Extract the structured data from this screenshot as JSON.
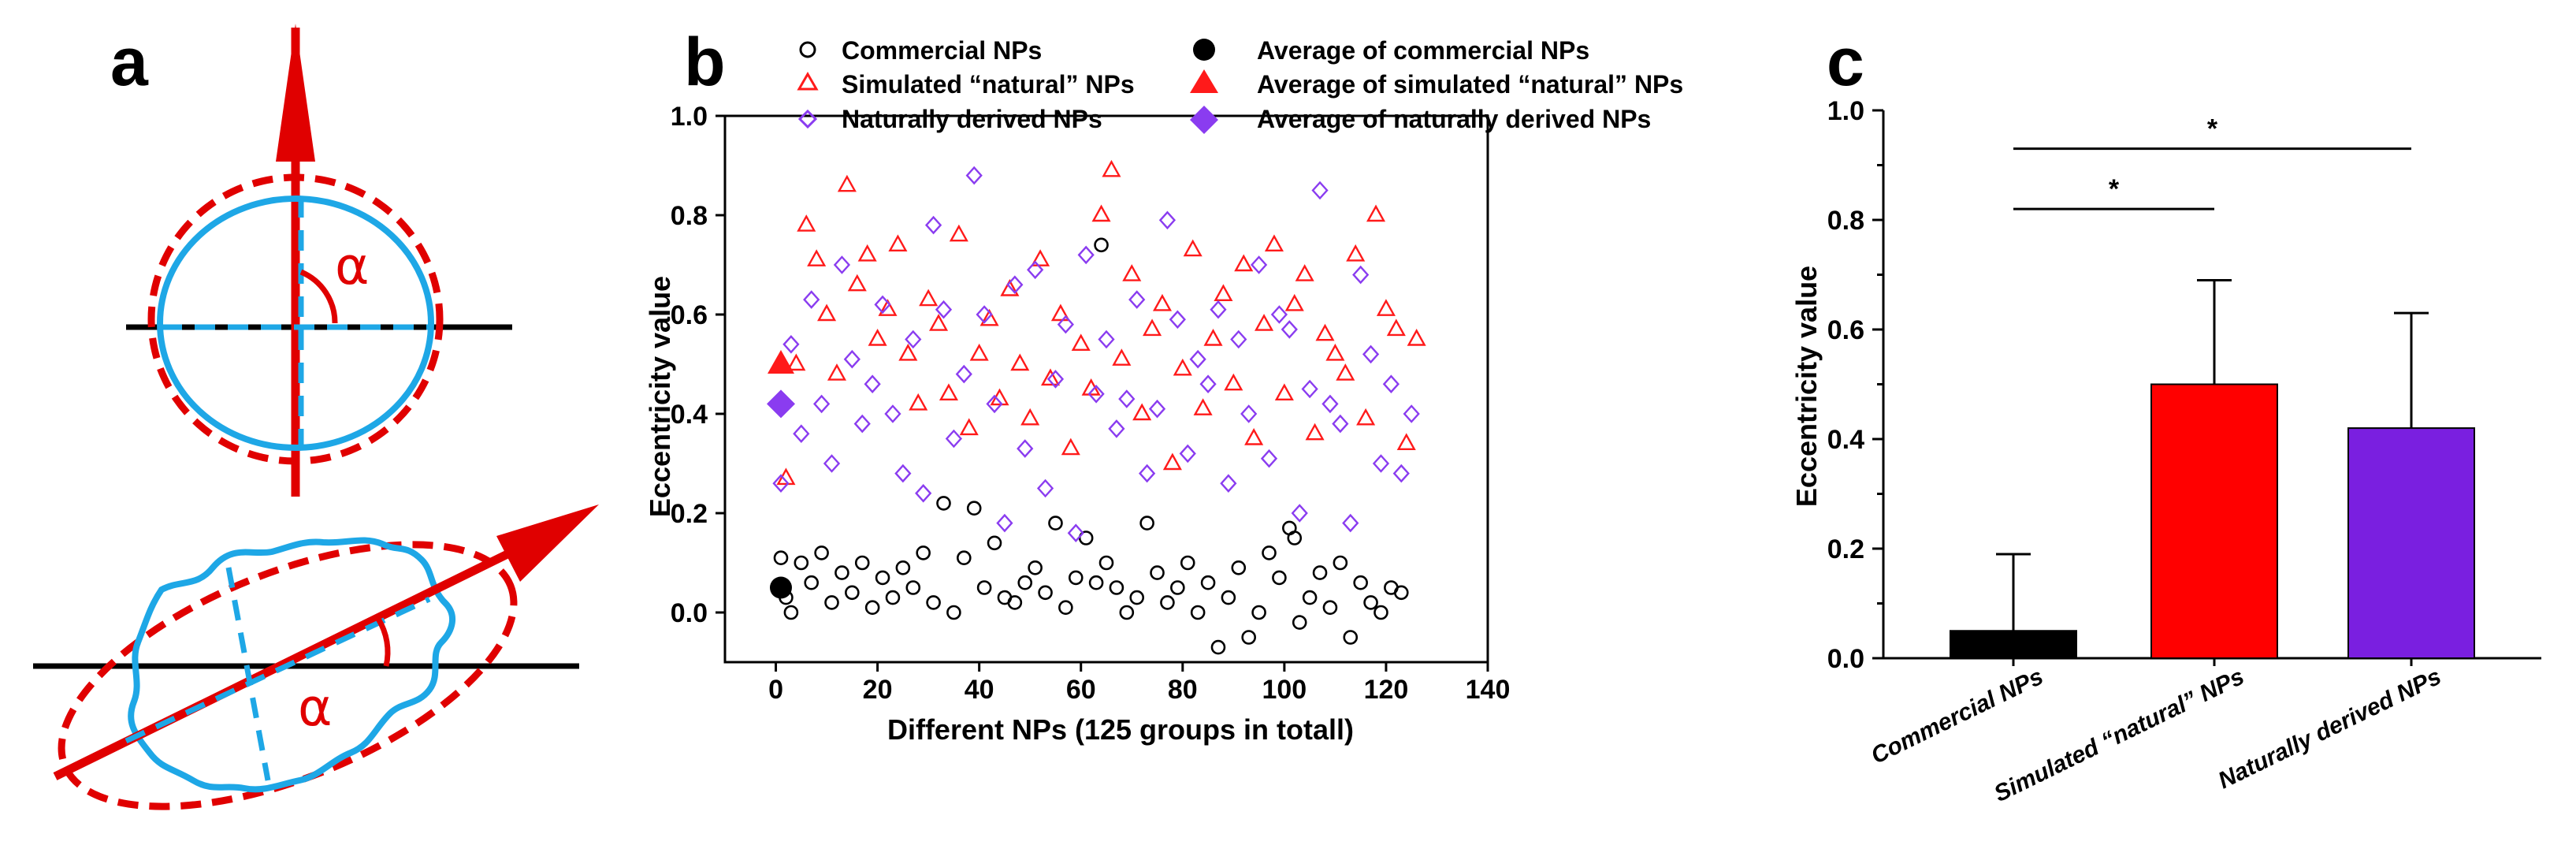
{
  "panels": {
    "a": "a",
    "b": "b",
    "c": "c"
  },
  "diagram_a": {
    "angle_symbol": "α"
  },
  "colors": {
    "commercial": "#000000",
    "simulated": "#ff1a1a",
    "natural": "#8a3cf0",
    "bar_commercial": "#000000",
    "bar_simulated": "#ff0000",
    "bar_natural": "#7a1fe0",
    "diagram_red": "#e00000",
    "diagram_blue": "#1ea7e6"
  },
  "chart_data": [
    {
      "type": "scatter",
      "title": "",
      "xlabel": "Different NPs (125 groups in totall)",
      "ylabel": "Eccentricity value",
      "xlim": [
        -10,
        140
      ],
      "ylim": [
        -0.1,
        1.0
      ],
      "xticks": [
        "0",
        "20",
        "40",
        "60",
        "80",
        "100",
        "120",
        "140"
      ],
      "yticks": [
        "0.0",
        "0.2",
        "0.4",
        "0.6",
        "0.8",
        "1.0"
      ],
      "legend": [
        "Commercial NPs",
        "Simulated “natural” NPs",
        "Naturally derived NPs",
        "Average of commercial NPs",
        "Average of simulated “natural” NPs",
        "Average of naturally derived NPs"
      ],
      "averages": [
        {
          "name": "Average of commercial NPs",
          "x": 1,
          "y": 0.05
        },
        {
          "name": "Average of simulated “natural” NPs",
          "x": 1,
          "y": 0.5
        },
        {
          "name": "Average of naturally derived NPs",
          "x": 1,
          "y": 0.42
        }
      ],
      "series": [
        {
          "name": "Commercial NPs",
          "marker": "circle",
          "x": [
            1,
            2,
            3,
            5,
            7,
            9,
            11,
            13,
            15,
            17,
            19,
            21,
            23,
            25,
            27,
            29,
            31,
            33,
            35,
            37,
            39,
            41,
            43,
            45,
            47,
            49,
            51,
            53,
            55,
            57,
            59,
            61,
            63,
            64,
            65,
            67,
            69,
            71,
            73,
            75,
            77,
            79,
            81,
            83,
            85,
            87,
            89,
            91,
            93,
            95,
            97,
            99,
            101,
            102,
            103,
            105,
            107,
            109,
            111,
            113,
            115,
            117,
            119,
            121,
            123
          ],
          "y": [
            0.11,
            0.03,
            0.0,
            0.1,
            0.06,
            0.12,
            0.02,
            0.08,
            0.04,
            0.1,
            0.01,
            0.07,
            0.03,
            0.09,
            0.05,
            0.12,
            0.02,
            0.22,
            0.0,
            0.11,
            0.21,
            0.05,
            0.14,
            0.03,
            0.02,
            0.06,
            0.09,
            0.04,
            0.18,
            0.01,
            0.07,
            0.15,
            0.06,
            0.74,
            0.1,
            0.05,
            0.0,
            0.03,
            0.18,
            0.08,
            0.02,
            0.05,
            0.1,
            0.0,
            0.06,
            -0.07,
            0.03,
            0.09,
            -0.05,
            0.0,
            0.12,
            0.07,
            0.17,
            0.15,
            -0.02,
            0.03,
            0.08,
            0.01,
            0.1,
            -0.05,
            0.06,
            0.02,
            0.0,
            0.05,
            0.04
          ]
        },
        {
          "name": "Simulated “natural” NPs",
          "marker": "triangle",
          "x": [
            2,
            4,
            6,
            8,
            10,
            12,
            14,
            16,
            18,
            20,
            22,
            24,
            26,
            28,
            30,
            32,
            34,
            36,
            38,
            40,
            42,
            44,
            46,
            48,
            50,
            52,
            54,
            56,
            58,
            60,
            62,
            64,
            66,
            68,
            70,
            72,
            74,
            76,
            78,
            80,
            82,
            84,
            86,
            88,
            90,
            92,
            94,
            96,
            98,
            100,
            102,
            104,
            106,
            108,
            110,
            112,
            114,
            116,
            118,
            120,
            122,
            124,
            126
          ],
          "y": [
            0.27,
            0.5,
            0.78,
            0.71,
            0.6,
            0.48,
            0.86,
            0.66,
            0.72,
            0.55,
            0.61,
            0.74,
            0.52,
            0.42,
            0.63,
            0.58,
            0.44,
            0.76,
            0.37,
            0.52,
            0.59,
            0.43,
            0.65,
            0.5,
            0.39,
            0.71,
            0.47,
            0.6,
            0.33,
            0.54,
            0.45,
            0.8,
            0.89,
            0.51,
            0.68,
            0.4,
            0.57,
            0.62,
            0.3,
            0.49,
            0.73,
            0.41,
            0.55,
            0.64,
            0.46,
            0.7,
            0.35,
            0.58,
            0.74,
            0.44,
            0.62,
            0.68,
            0.36,
            0.56,
            0.52,
            0.48,
            0.72,
            0.39,
            0.8,
            0.61,
            0.57,
            0.34,
            0.55
          ]
        },
        {
          "name": "Naturally derived NPs",
          "marker": "diamond",
          "x": [
            1,
            3,
            5,
            7,
            9,
            11,
            13,
            15,
            17,
            19,
            21,
            23,
            25,
            27,
            29,
            31,
            33,
            35,
            37,
            39,
            41,
            43,
            45,
            47,
            49,
            51,
            53,
            55,
            57,
            59,
            61,
            63,
            65,
            67,
            69,
            71,
            73,
            75,
            77,
            79,
            81,
            83,
            85,
            87,
            89,
            91,
            93,
            95,
            97,
            99,
            101,
            103,
            105,
            107,
            109,
            111,
            113,
            115,
            117,
            119,
            121,
            123,
            125
          ],
          "y": [
            0.26,
            0.54,
            0.36,
            0.63,
            0.42,
            0.3,
            0.7,
            0.51,
            0.38,
            0.46,
            0.62,
            0.4,
            0.28,
            0.55,
            0.24,
            0.78,
            0.61,
            0.35,
            0.48,
            0.88,
            0.6,
            0.42,
            0.18,
            0.66,
            0.33,
            0.69,
            0.25,
            0.47,
            0.58,
            0.16,
            0.72,
            0.44,
            0.55,
            0.37,
            0.43,
            0.63,
            0.28,
            0.41,
            0.79,
            0.59,
            0.32,
            0.51,
            0.46,
            0.61,
            0.26,
            0.55,
            0.4,
            0.7,
            0.31,
            0.6,
            0.57,
            0.2,
            0.45,
            0.85,
            0.42,
            0.38,
            0.18,
            0.68,
            0.52,
            0.3,
            0.46,
            0.28,
            0.4
          ]
        }
      ]
    },
    {
      "type": "bar",
      "title": "",
      "xlabel": "",
      "ylabel": "Eccentricity value",
      "ylim": [
        0.0,
        1.0
      ],
      "yticks": [
        "0.0",
        "0.2",
        "0.4",
        "0.6",
        "0.8",
        "1.0"
      ],
      "categories": [
        "Commercial NPs",
        "Simulated “natural” NPs",
        "Naturally derived NPs"
      ],
      "values": [
        0.05,
        0.5,
        0.42
      ],
      "errors": [
        0.14,
        0.19,
        0.21
      ],
      "significance": [
        {
          "from": 0,
          "to": 1,
          "label": "*",
          "y": 0.82
        },
        {
          "from": 0,
          "to": 2,
          "label": "*",
          "y": 0.93
        }
      ]
    }
  ]
}
